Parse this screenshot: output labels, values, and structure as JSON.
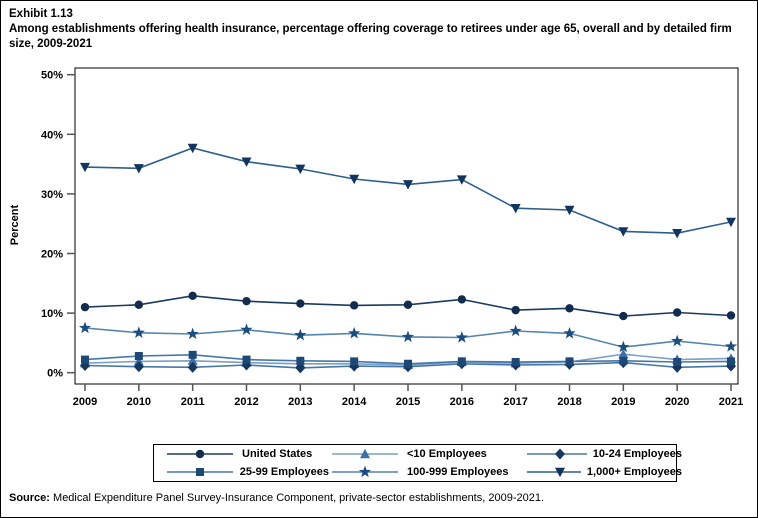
{
  "page": {
    "exhibit_number": "Exhibit 1.13",
    "title": "Among establishments offering health insurance, percentage offering coverage to retirees under age 65, overall and by detailed firm size, 2009-2021",
    "source_label": "Source:",
    "source_text": " Medical Expenditure Panel Survey-Insurance Component, private-sector establishments, 2009-2021."
  },
  "chart_data": {
    "type": "line",
    "title": "Among establishments offering health insurance, percentage offering coverage to retirees under age 65, overall and by detailed firm size, 2009-2021",
    "xlabel": "",
    "ylabel": "Percent",
    "x": [
      2009,
      2010,
      2011,
      2012,
      2013,
      2014,
      2015,
      2016,
      2017,
      2018,
      2019,
      2020,
      2021
    ],
    "ylim": [
      0,
      50
    ],
    "yticks": [
      0,
      10,
      20,
      30,
      40,
      50
    ],
    "ytick_suffix": "%",
    "grid": false,
    "legend_position": "bottom",
    "series": [
      {
        "name": "United States",
        "marker": "circle",
        "color": "#122C4E",
        "line_color": "#1B3A5F",
        "values": [
          11.0,
          11.4,
          12.9,
          12.0,
          11.6,
          11.3,
          11.4,
          12.3,
          10.5,
          10.8,
          9.5,
          10.1,
          9.6
        ]
      },
      {
        "name": "<10 Employees",
        "marker": "triangle-up",
        "color": "#3E6FA5",
        "line_color": "#7C9FC4",
        "values": [
          1.6,
          1.9,
          2.0,
          1.7,
          1.5,
          1.5,
          1.3,
          1.8,
          1.6,
          1.8,
          3.1,
          2.2,
          2.4
        ]
      },
      {
        "name": "10-24 Employees",
        "marker": "diamond",
        "color": "#16375E",
        "line_color": "#4677A9",
        "values": [
          1.2,
          1.0,
          0.9,
          1.3,
          0.8,
          1.1,
          1.0,
          1.5,
          1.3,
          1.4,
          1.7,
          0.9,
          1.1
        ]
      },
      {
        "name": "25-99 Employees",
        "marker": "square",
        "color": "#1E4876",
        "line_color": "#4677A9",
        "values": [
          2.2,
          2.8,
          3.0,
          2.2,
          2.0,
          1.9,
          1.5,
          1.9,
          1.8,
          1.9,
          2.0,
          1.8,
          1.9
        ]
      },
      {
        "name": "100-999 Employees",
        "marker": "star",
        "color": "#1B4E7F",
        "line_color": "#5584B1",
        "values": [
          7.5,
          6.7,
          6.5,
          7.2,
          6.3,
          6.6,
          6.0,
          5.9,
          7.0,
          6.6,
          4.3,
          5.3,
          4.4
        ]
      },
      {
        "name": "1,000+ Employees",
        "marker": "triangle-down",
        "color": "#12355F",
        "line_color": "#2C5F8E",
        "values": [
          34.5,
          34.3,
          37.7,
          35.4,
          34.2,
          32.5,
          31.6,
          32.4,
          27.6,
          27.3,
          23.7,
          23.4,
          25.3
        ]
      }
    ]
  }
}
